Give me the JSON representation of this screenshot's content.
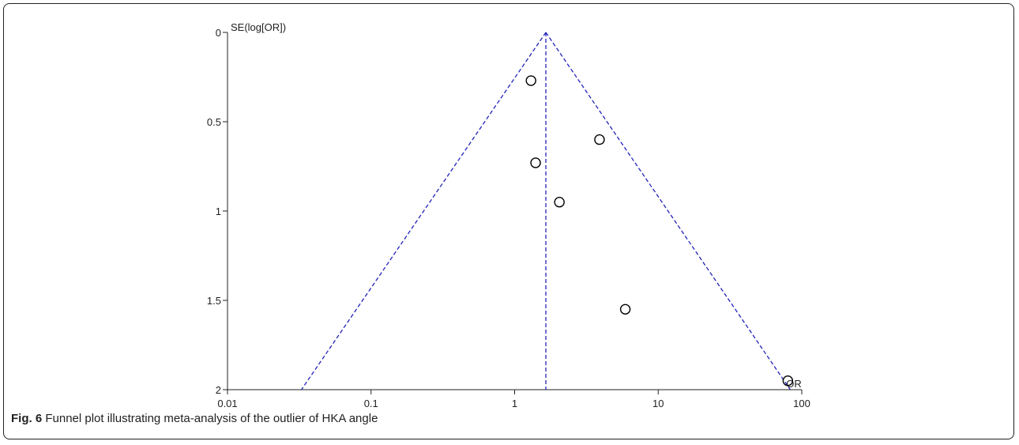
{
  "caption": {
    "label": "Fig. 6",
    "text": "Funnel plot illustrating meta-analysis of the outlier of HKA angle"
  },
  "chart_data": {
    "type": "scatter",
    "title": "",
    "xlabel": "OR",
    "ylabel": "SE(log[OR])",
    "x_scale": "log",
    "xlim": [
      0.01,
      100
    ],
    "ylim": [
      0,
      2
    ],
    "y_inverted": true,
    "x_ticks": [
      0.01,
      0.1,
      1,
      10,
      100
    ],
    "x_tick_labels": [
      "0.01",
      "0.1",
      "1",
      "10",
      "100"
    ],
    "y_ticks": [
      0,
      0.5,
      1,
      1.5,
      2
    ],
    "y_tick_labels": [
      "0",
      "0.5",
      "1",
      "1.5",
      "2"
    ],
    "pooled_or": 1.65,
    "funnel_ci": "95% pseudo confidence limits",
    "points": [
      {
        "x": 1.3,
        "y": 0.27
      },
      {
        "x": 3.9,
        "y": 0.6
      },
      {
        "x": 1.4,
        "y": 0.73
      },
      {
        "x": 2.05,
        "y": 0.95
      },
      {
        "x": 5.9,
        "y": 1.55
      },
      {
        "x": 80,
        "y": 1.95
      }
    ],
    "grid": false,
    "colors": {
      "funnel": "#2222bb",
      "points": "#000000",
      "axes": "#222222"
    }
  }
}
